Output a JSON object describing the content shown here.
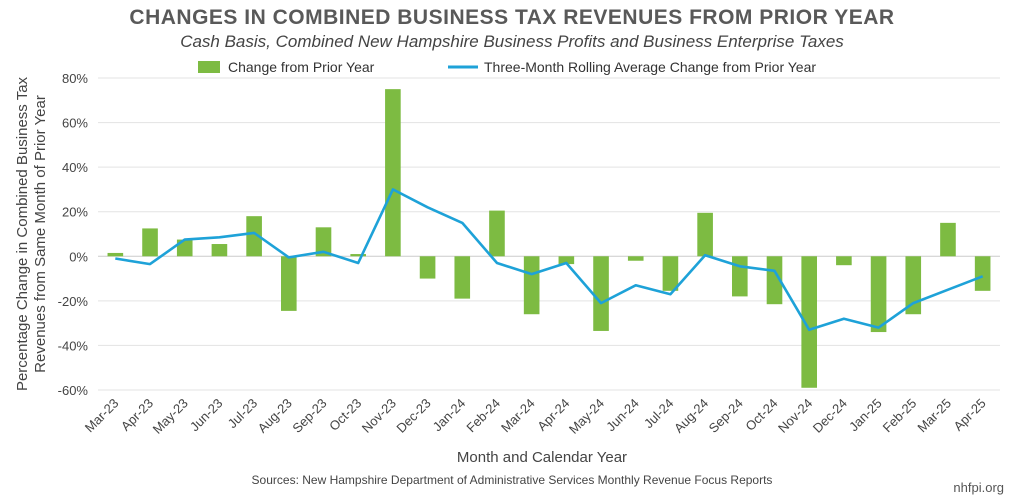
{
  "chart_data": {
    "type": "bar",
    "title": "CHANGES IN COMBINED BUSINESS TAX REVENUES FROM PRIOR YEAR",
    "subtitle": "Cash Basis, Combined New Hampshire Business Profits and Business Enterprise Taxes",
    "xlabel": "Month and Calendar Year",
    "ylabel": [
      "Percentage Change in Combined Business Tax",
      "Revenues from Same Month of Prior Year"
    ],
    "ylim": [
      -60,
      80
    ],
    "yticks": [
      -60,
      -40,
      -20,
      0,
      20,
      40,
      60,
      80
    ],
    "ytick_labels": [
      "-60%",
      "-40%",
      "-20%",
      "0%",
      "20%",
      "40%",
      "60%",
      "80%"
    ],
    "grid": true,
    "legend_position": "top",
    "categories": [
      "Mar-23",
      "Apr-23",
      "May-23",
      "Jun-23",
      "Jul-23",
      "Aug-23",
      "Sep-23",
      "Oct-23",
      "Nov-23",
      "Dec-23",
      "Jan-24",
      "Feb-24",
      "Mar-24",
      "Apr-24",
      "May-24",
      "Jun-24",
      "Jul-24",
      "Aug-24",
      "Sep-24",
      "Oct-24",
      "Nov-24",
      "Dec-24",
      "Jan-25",
      "Feb-25",
      "Mar-25",
      "Apr-25"
    ],
    "series": [
      {
        "name": "Change from Prior Year",
        "type": "bar",
        "color": "#7dbb42",
        "values": [
          1.5,
          12.5,
          7.5,
          5.5,
          18,
          -24.5,
          13,
          1,
          75,
          -10,
          -19,
          20.5,
          -26,
          -3.5,
          -33.5,
          -2,
          -15.5,
          19.5,
          -18,
          -21.5,
          -59,
          -4,
          -34,
          -26,
          15,
          -15.5
        ]
      },
      {
        "name": "Three-Month Rolling Average Change from Prior Year",
        "type": "line",
        "color": "#1ea2d8",
        "values": [
          -1,
          -3.5,
          7.5,
          8.5,
          10.5,
          -0.5,
          2,
          -3,
          30,
          22,
          15,
          -3,
          -8,
          -3,
          -21,
          -13,
          -17,
          0.5,
          -4.5,
          -6.5,
          -33,
          -28,
          -32,
          -21,
          -15,
          -9
        ]
      }
    ]
  },
  "footer": {
    "source": "Sources: New Hampshire Department of Administrative Services Monthly Revenue Focus Reports",
    "credit": "nhfpi.org"
  }
}
